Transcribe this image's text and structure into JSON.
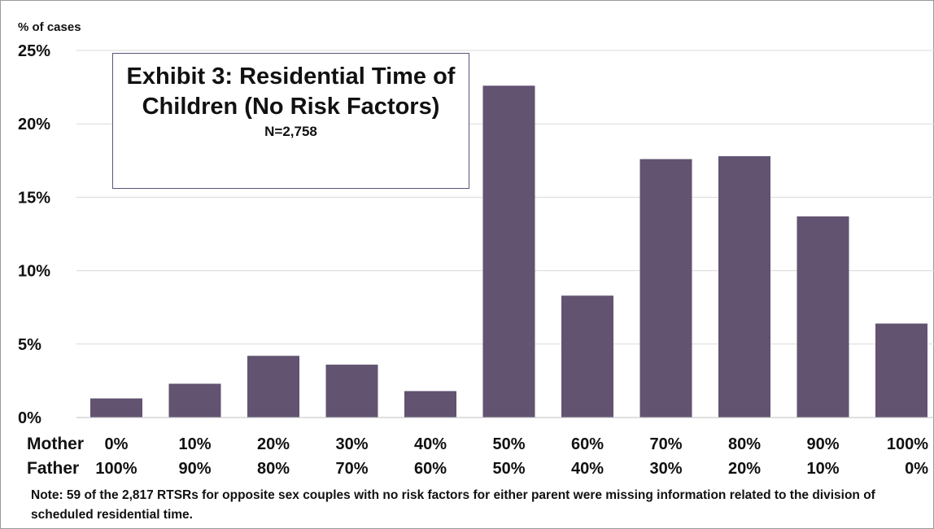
{
  "chart_data": {
    "type": "bar",
    "title": "Exhibit 3: Residential Time of Children (No Risk Factors)",
    "subtitle": "N=2,758",
    "ylabel": "% of cases",
    "ylim": [
      0,
      25
    ],
    "yticks": [
      "0%",
      "5%",
      "10%",
      "15%",
      "20%",
      "25%"
    ],
    "grid": true,
    "bar_color": "#625371",
    "row_labels": [
      "Mother",
      "Father"
    ],
    "categories_mother": [
      "0%",
      "10%",
      "20%",
      "30%",
      "40%",
      "50%",
      "60%",
      "70%",
      "80%",
      "90%",
      "100%"
    ],
    "categories_father": [
      "100%",
      "90%",
      "80%",
      "70%",
      "60%",
      "50%",
      "40%",
      "30%",
      "20%",
      "10%",
      "0%"
    ],
    "values": [
      1.3,
      2.3,
      4.2,
      3.6,
      1.8,
      22.6,
      8.3,
      17.6,
      17.8,
      13.7,
      6.4
    ]
  },
  "title_box": {
    "title": "Exhibit 3: Residential Time of Children (No Risk Factors)",
    "subtitle": "N=2,758"
  },
  "note": "Note: 59 of the 2,817 RTSRs for opposite sex couples with no risk factors for either parent were missing information related to the division of scheduled residential time."
}
